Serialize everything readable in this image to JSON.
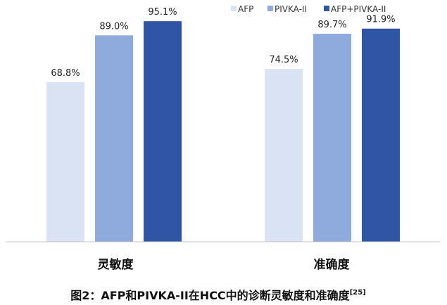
{
  "chart_data": {
    "type": "bar",
    "categories": [
      "灵敏度",
      "准确度"
    ],
    "series": [
      {
        "name": "AFP",
        "values": [
          68.8,
          74.5
        ],
        "color": "#dae3f3"
      },
      {
        "name": "PIVKA-II",
        "values": [
          89.0,
          89.7
        ],
        "color": "#8faadc"
      },
      {
        "name": "AFP+PIVKA-II",
        "values": [
          95.1,
          91.9
        ],
        "color": "#2f55a4"
      }
    ],
    "value_labels": [
      [
        "68.8%",
        "74.5%"
      ],
      [
        "89.0%",
        "89.7%"
      ],
      [
        "95.1%",
        "91.9%"
      ]
    ],
    "ylim": [
      0,
      100
    ],
    "grid": false,
    "legend_position": "top-right",
    "axis_color": "#bfbfbf"
  },
  "caption": {
    "text": "图2：AFP和PIVKA-II在HCC中的诊断灵敏度和准确度",
    "reference": "[25]"
  }
}
